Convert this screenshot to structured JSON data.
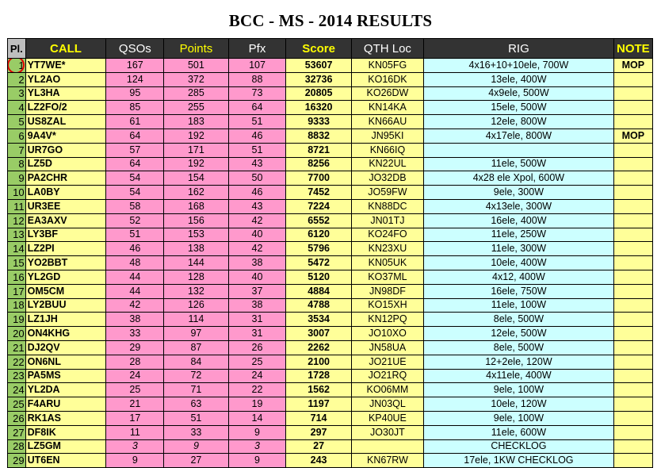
{
  "title": "BCC - MS - 2014 RESULTS",
  "colors": {
    "pl": "#99cc66",
    "call": "#ffff99",
    "pink": "#ff99cc",
    "rig": "#ccffff",
    "header": "#333333",
    "header_yellow": "#ffff00",
    "highlight_circle": "#e30000"
  },
  "headers": {
    "pl": "Pl.",
    "call": "CALL",
    "qsos": "QSOs",
    "points": "Points",
    "pfx": "Pfx",
    "score": "Score",
    "qth": "QTH Loc",
    "rig": "RIG",
    "note": "NOTE"
  },
  "rows": [
    {
      "pl": "1",
      "call": "YT7WE*",
      "qsos": "167",
      "points": "501",
      "pfx": "107",
      "score": "53607",
      "qth": "KN05FG",
      "rig": "4x16+10+10ele, 700W",
      "note": "MOP"
    },
    {
      "pl": "2",
      "call": "YL2AO",
      "qsos": "124",
      "points": "372",
      "pfx": "88",
      "score": "32736",
      "qth": "KO16DK",
      "rig": "13ele, 400W",
      "note": ""
    },
    {
      "pl": "3",
      "call": "YL3HA",
      "qsos": "95",
      "points": "285",
      "pfx": "73",
      "score": "20805",
      "qth": "KO26DW",
      "rig": "4x9ele, 500W",
      "note": ""
    },
    {
      "pl": "4",
      "call": "LZ2FO/2",
      "qsos": "85",
      "points": "255",
      "pfx": "64",
      "score": "16320",
      "qth": "KN14KA",
      "rig": "15ele, 500W",
      "note": ""
    },
    {
      "pl": "5",
      "call": "US8ZAL",
      "qsos": "61",
      "points": "183",
      "pfx": "51",
      "score": "9333",
      "qth": "KN66AU",
      "rig": "12ele, 800W",
      "note": ""
    },
    {
      "pl": "6",
      "call": "9A4V*",
      "qsos": "64",
      "points": "192",
      "pfx": "46",
      "score": "8832",
      "qth": "JN95KI",
      "rig": "4x17ele, 800W",
      "note": "MOP"
    },
    {
      "pl": "7",
      "call": "UR7GO",
      "qsos": "57",
      "points": "171",
      "pfx": "51",
      "score": "8721",
      "qth": "KN66IQ",
      "rig": "",
      "note": ""
    },
    {
      "pl": "8",
      "call": "LZ5D",
      "qsos": "64",
      "points": "192",
      "pfx": "43",
      "score": "8256",
      "qth": "KN22UL",
      "rig": "11ele, 500W",
      "note": ""
    },
    {
      "pl": "9",
      "call": "PA2CHR",
      "qsos": "54",
      "points": "154",
      "pfx": "50",
      "score": "7700",
      "qth": "JO32DB",
      "rig": "4x28 ele Xpol, 600W",
      "note": ""
    },
    {
      "pl": "10",
      "call": "LA0BY",
      "qsos": "54",
      "points": "162",
      "pfx": "46",
      "score": "7452",
      "qth": "JO59FW",
      "rig": "9ele, 300W",
      "note": ""
    },
    {
      "pl": "11",
      "call": "UR3EE",
      "qsos": "58",
      "points": "168",
      "pfx": "43",
      "score": "7224",
      "qth": "KN88DC",
      "rig": "4x13ele, 300W",
      "note": ""
    },
    {
      "pl": "12",
      "call": "EA3AXV",
      "qsos": "52",
      "points": "156",
      "pfx": "42",
      "score": "6552",
      "qth": "JN01TJ",
      "rig": "16ele, 400W",
      "note": ""
    },
    {
      "pl": "13",
      "call": "LY3BF",
      "qsos": "51",
      "points": "153",
      "pfx": "40",
      "score": "6120",
      "qth": "KO24FO",
      "rig": "11ele, 250W",
      "note": ""
    },
    {
      "pl": "14",
      "call": "LZ2PI",
      "qsos": "46",
      "points": "138",
      "pfx": "42",
      "score": "5796",
      "qth": "KN23XU",
      "rig": "11ele, 300W",
      "note": ""
    },
    {
      "pl": "15",
      "call": "YO2BBT",
      "qsos": "48",
      "points": "144",
      "pfx": "38",
      "score": "5472",
      "qth": "KN05UK",
      "rig": "10ele, 400W",
      "note": ""
    },
    {
      "pl": "16",
      "call": "YL2GD",
      "qsos": "44",
      "points": "128",
      "pfx": "40",
      "score": "5120",
      "qth": "KO37ML",
      "rig": "4x12, 400W",
      "note": ""
    },
    {
      "pl": "17",
      "call": "OM5CM",
      "qsos": "44",
      "points": "132",
      "pfx": "37",
      "score": "4884",
      "qth": "JN98DF",
      "rig": "16ele, 750W",
      "note": ""
    },
    {
      "pl": "18",
      "call": "LY2BUU",
      "qsos": "42",
      "points": "126",
      "pfx": "38",
      "score": "4788",
      "qth": "KO15XH",
      "rig": "11ele, 100W",
      "note": ""
    },
    {
      "pl": "19",
      "call": "LZ1JH",
      "qsos": "38",
      "points": "114",
      "pfx": "31",
      "score": "3534",
      "qth": "KN12PQ",
      "rig": "8ele, 500W",
      "note": ""
    },
    {
      "pl": "20",
      "call": "ON4KHG",
      "qsos": "33",
      "points": "97",
      "pfx": "31",
      "score": "3007",
      "qth": "JO10XO",
      "rig": "12ele, 500W",
      "note": ""
    },
    {
      "pl": "21",
      "call": "DJ2QV",
      "qsos": "29",
      "points": "87",
      "pfx": "26",
      "score": "2262",
      "qth": "JN58UA",
      "rig": "8ele, 500W",
      "note": ""
    },
    {
      "pl": "22",
      "call": "ON6NL",
      "qsos": "28",
      "points": "84",
      "pfx": "25",
      "score": "2100",
      "qth": "JO21UE",
      "rig": "12+2ele, 120W",
      "note": ""
    },
    {
      "pl": "23",
      "call": "PA5MS",
      "qsos": "24",
      "points": "72",
      "pfx": "24",
      "score": "1728",
      "qth": "JO21RQ",
      "rig": "4x11ele, 400W",
      "note": ""
    },
    {
      "pl": "24",
      "call": "YL2DA",
      "qsos": "25",
      "points": "71",
      "pfx": "22",
      "score": "1562",
      "qth": "KO06MM",
      "rig": "9ele, 100W",
      "note": ""
    },
    {
      "pl": "25",
      "call": "F4ARU",
      "qsos": "21",
      "points": "63",
      "pfx": "19",
      "score": "1197",
      "qth": "JN03QL",
      "rig": "10ele, 120W",
      "note": ""
    },
    {
      "pl": "26",
      "call": "RK1AS",
      "qsos": "17",
      "points": "51",
      "pfx": "14",
      "score": "714",
      "qth": "KP40UE",
      "rig": "9ele, 100W",
      "note": ""
    },
    {
      "pl": "27",
      "call": "DF8IK",
      "qsos": "11",
      "points": "33",
      "pfx": "9",
      "score": "297",
      "qth": "JO30JT",
      "rig": "11ele, 600W",
      "note": ""
    },
    {
      "pl": "28",
      "call": "LZ5GM",
      "qsos": "3",
      "points": "9",
      "pfx": "3",
      "score": "27",
      "qth": "",
      "rig": "CHECKLOG",
      "note": "",
      "italic": true
    },
    {
      "pl": "29",
      "call": "UT6EN",
      "qsos": "9",
      "points": "27",
      "pfx": "9",
      "score": "243",
      "qth": "KN67RW",
      "rig": "17ele, 1KW CHECKLOG",
      "note": ""
    }
  ]
}
